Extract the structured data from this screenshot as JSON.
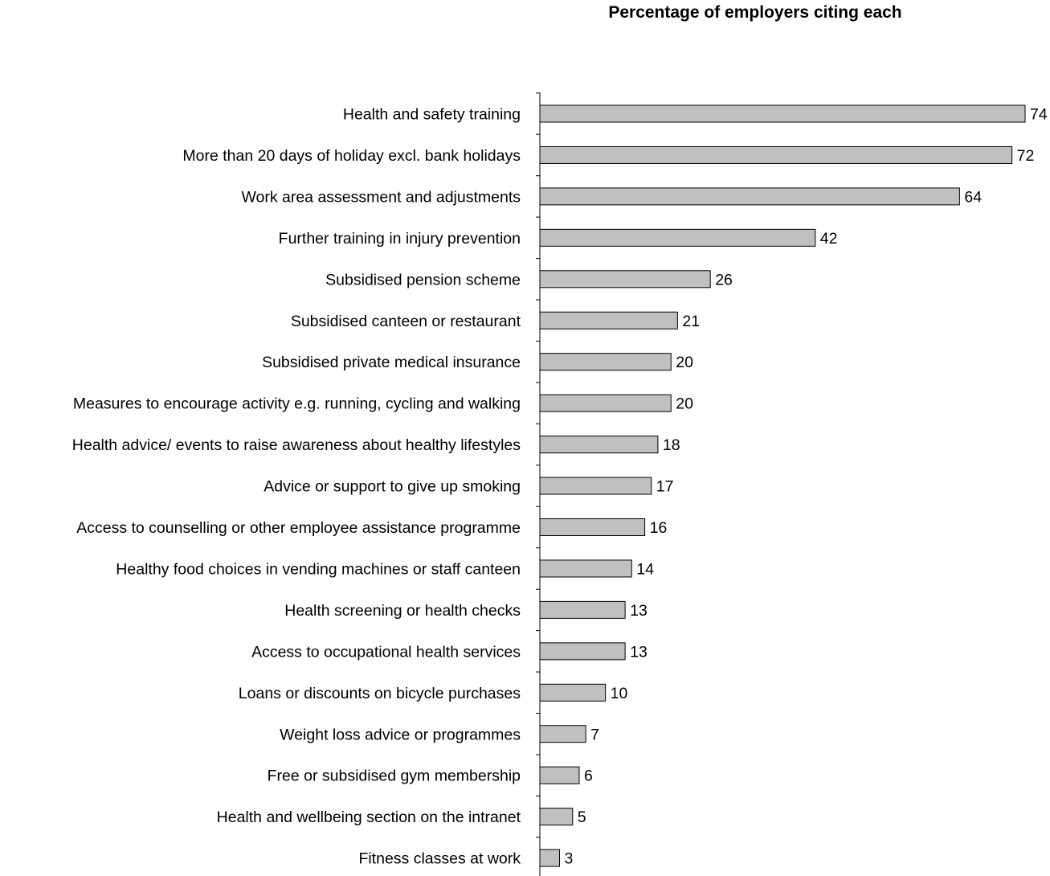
{
  "chart_data": {
    "type": "bar",
    "orientation": "horizontal",
    "title": "Percentage of employers citing each",
    "categories": [
      "Health and safety training",
      "More than 20 days of holiday excl. bank holidays",
      "Work area assessment and adjustments",
      "Further training in injury prevention",
      "Subsidised pension scheme",
      "Subsidised canteen or restaurant",
      "Subsidised private medical insurance",
      "Measures to encourage activity e.g. running, cycling and walking",
      "Health advice/ events to raise awareness about healthy lifestyles",
      "Advice or support to give up smoking",
      "Access to counselling or other employee assistance programme",
      "Healthy food choices in vending machines or staff canteen",
      "Health screening or health checks",
      "Access to occupational health services",
      "Loans or discounts on bicycle purchases",
      "Weight loss advice or programmes",
      "Free or subsidised gym membership",
      "Health and wellbeing section on the intranet",
      "Fitness classes at work"
    ],
    "values": [
      74,
      72,
      64,
      42,
      26,
      21,
      20,
      20,
      18,
      17,
      16,
      14,
      13,
      13,
      10,
      7,
      6,
      5,
      3
    ],
    "xlim": [
      0,
      74
    ],
    "grid": false,
    "legend": "none",
    "data_labels": true,
    "bar_color": "#c0c0c0",
    "bar_edge_color": "#000000"
  }
}
